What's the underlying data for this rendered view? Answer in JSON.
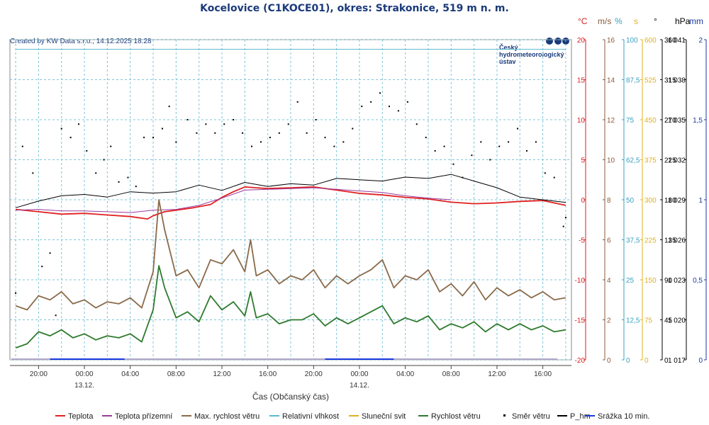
{
  "chart_data": {
    "type": "line",
    "title": "Kocelovice (C1KOCE01), okres: Strakonice, 519 m n. m.",
    "credit": "Created by KW Data s.r.o., 14.12.2025 18:28",
    "logo_text": [
      "Český",
      "hydrometeorologický",
      "ústav"
    ],
    "xlabel": "Čas (Občanský čas)",
    "x_ticks": [
      {
        "h": 20,
        "label": "20:00",
        "sub": ""
      },
      {
        "h": 24,
        "label": "00:00",
        "sub": "13.12."
      },
      {
        "h": 28,
        "label": "04:00",
        "sub": ""
      },
      {
        "h": 32,
        "label": "08:00",
        "sub": ""
      },
      {
        "h": 36,
        "label": "12:00",
        "sub": ""
      },
      {
        "h": 40,
        "label": "16:00",
        "sub": ""
      },
      {
        "h": 44,
        "label": "20:00",
        "sub": ""
      },
      {
        "h": 48,
        "label": "00:00",
        "sub": "14.12."
      },
      {
        "h": 52,
        "label": "04:00",
        "sub": ""
      },
      {
        "h": 56,
        "label": "08:00",
        "sub": ""
      },
      {
        "h": 60,
        "label": "12:00",
        "sub": ""
      },
      {
        "h": 64,
        "label": "16:00",
        "sub": ""
      }
    ],
    "xlim": [
      17.5,
      66.5
    ],
    "axes": [
      {
        "unit": "°C",
        "color": "#d81e1e",
        "ticks": [
          "20",
          "15",
          "10",
          "5",
          "0",
          "-5",
          "-10",
          "-15",
          "-20"
        ]
      },
      {
        "unit": "m/s",
        "color": "#8a5a3a",
        "ticks": [
          "16",
          "14",
          "12",
          "10",
          "8",
          "6",
          "4",
          "2",
          "0"
        ]
      },
      {
        "unit": "%",
        "color": "#39a0c0",
        "ticks": [
          "100",
          "87,5",
          "75",
          "62,5",
          "50",
          "37,5",
          "25",
          "12,5",
          "0"
        ]
      },
      {
        "unit": "s",
        "color": "#e0b020",
        "ticks": [
          "600",
          "525",
          "450",
          "375",
          "300",
          "225",
          "150",
          "75",
          "0"
        ]
      },
      {
        "unit": "°",
        "color": "#000000",
        "ticks": [
          "360",
          "315",
          "270",
          "225",
          "180",
          "135",
          "90",
          "45",
          "0"
        ]
      },
      {
        "unit": "hPa",
        "color": "#000000",
        "ticks": [
          "1 041",
          "1 038",
          "1 035",
          "1 032",
          "1 029",
          "1 026",
          "1 023",
          "1 020",
          "1 017"
        ]
      },
      {
        "unit": "mm",
        "color": "#1a3aa0",
        "ticks": [
          "2",
          "1,5",
          "1",
          "0,5",
          "0"
        ]
      }
    ],
    "series": [
      {
        "name": "Teplota",
        "unit": "°C",
        "color": "#e02020",
        "x": [
          18,
          20,
          22,
          24,
          26,
          28,
          29.5,
          30,
          31,
          32,
          33.5,
          35,
          36,
          37,
          38,
          39,
          40,
          42,
          44,
          46,
          48,
          50,
          52,
          54,
          56,
          58,
          60,
          62,
          64,
          66
        ],
        "y": [
          -1.2,
          -1.5,
          -1.8,
          -1.7,
          -1.9,
          -2.1,
          -2.4,
          -2.0,
          -1.5,
          -1.3,
          -1.0,
          -0.6,
          0.3,
          1.0,
          1.6,
          1.5,
          1.4,
          1.5,
          1.6,
          1.2,
          0.8,
          0.6,
          0.3,
          0.1,
          -0.3,
          -0.5,
          -0.4,
          -0.2,
          -0.1,
          -0.7
        ]
      },
      {
        "name": "Teplota přízemní",
        "unit": "°C",
        "color": "#9a3a9a",
        "x": [
          18,
          20,
          22,
          24,
          26,
          28,
          30,
          32,
          34,
          36,
          38,
          40,
          42,
          44,
          46,
          48,
          50,
          52,
          54,
          56
        ],
        "y": [
          -1.3,
          -1.2,
          -1.4,
          -1.4,
          -1.5,
          -1.6,
          -1.3,
          -1.2,
          -0.7,
          0.2,
          1.2,
          1.3,
          1.4,
          1.5,
          1.3,
          1.1,
          0.9,
          0.5,
          0.2,
          0.0
        ]
      },
      {
        "name": "Max. rychlost větru",
        "unit": "m/s",
        "color": "#8a6a4a",
        "x": [
          18,
          19,
          20,
          21,
          22,
          23,
          24,
          25,
          26,
          27,
          28,
          29,
          30,
          30.5,
          31,
          32,
          33,
          34,
          35,
          36,
          37,
          38,
          38.5,
          39,
          40,
          41,
          42,
          43,
          44,
          45,
          46,
          47,
          48,
          49,
          50,
          51,
          52,
          53,
          54,
          55,
          56,
          57,
          58,
          59,
          60,
          61,
          62,
          63,
          64,
          65,
          66
        ],
        "y": [
          2.7,
          2.5,
          3.2,
          3.0,
          3.4,
          2.8,
          3.0,
          2.6,
          2.9,
          2.8,
          3.1,
          2.6,
          4.4,
          8.0,
          6.5,
          4.2,
          4.5,
          3.6,
          5.0,
          4.8,
          5.5,
          4.4,
          6.0,
          4.2,
          4.5,
          3.8,
          4.2,
          4.0,
          4.5,
          3.6,
          4.2,
          3.8,
          4.2,
          4.5,
          5.0,
          3.6,
          4.2,
          4.0,
          4.5,
          3.4,
          3.8,
          3.2,
          3.9,
          3.0,
          3.6,
          3.2,
          3.5,
          3.1,
          3.4,
          3.0,
          3.1
        ]
      },
      {
        "name": "Relativní vlhkost",
        "unit": "%",
        "color": "#5ab8d0",
        "x": [
          18,
          22,
          26,
          30,
          34,
          38,
          42,
          46,
          50,
          54,
          58,
          62,
          66
        ],
        "y": [
          97,
          97,
          97,
          97,
          97,
          97,
          97,
          97,
          97,
          97,
          97,
          97,
          97
        ]
      },
      {
        "name": "Sluneční svit",
        "unit": "s",
        "color": "#e0b020",
        "x": [],
        "y": []
      },
      {
        "name": "Rychlost větru",
        "unit": "m/s",
        "color": "#2e7a2e",
        "x": [
          18,
          19,
          20,
          21,
          22,
          23,
          24,
          25,
          26,
          27,
          28,
          29,
          30,
          30.5,
          31,
          32,
          33,
          34,
          35,
          36,
          37,
          38,
          38.5,
          39,
          40,
          41,
          42,
          43,
          44,
          45,
          46,
          47,
          48,
          49,
          50,
          51,
          52,
          53,
          54,
          55,
          56,
          57,
          58,
          59,
          60,
          61,
          62,
          63,
          64,
          65,
          66
        ],
        "y": [
          0.6,
          0.8,
          1.4,
          1.2,
          1.5,
          1.1,
          1.3,
          1.0,
          1.2,
          1.1,
          1.3,
          0.9,
          2.5,
          4.7,
          3.6,
          2.1,
          2.4,
          1.9,
          3.2,
          2.5,
          2.9,
          2.2,
          3.4,
          2.1,
          2.3,
          1.8,
          2.0,
          2.0,
          2.3,
          1.7,
          2.1,
          1.8,
          2.1,
          2.4,
          2.7,
          1.8,
          2.1,
          1.9,
          2.2,
          1.5,
          1.8,
          1.6,
          1.9,
          1.4,
          1.8,
          1.5,
          1.8,
          1.5,
          1.7,
          1.4,
          1.5
        ]
      },
      {
        "name": "Směr větru",
        "unit": "°",
        "color": "#000000",
        "style": "dots",
        "x": [
          18,
          18.6,
          19.5,
          20.3,
          21,
          21.5,
          22,
          22.8,
          23.5,
          24.2,
          25,
          25.7,
          26.3,
          27,
          27.8,
          28.5,
          29.2,
          30,
          30.8,
          31.4,
          32,
          33,
          33.8,
          34.6,
          35.4,
          36.2,
          37,
          37.8,
          38.6,
          39.4,
          40.2,
          41,
          41.8,
          42.6,
          43.4,
          44.2,
          45,
          45.8,
          46.6,
          47.4,
          48.2,
          49,
          49.8,
          50.6,
          51.4,
          52.2,
          53,
          53.8,
          54.6,
          55.4,
          56.2,
          57,
          57.8,
          58.6,
          59.4,
          60.2,
          61,
          61.8,
          62.6,
          63.4,
          64.2,
          65,
          65.8,
          66
        ],
        "y": [
          75,
          240,
          210,
          105,
          120,
          50,
          260,
          250,
          265,
          235,
          210,
          225,
          240,
          200,
          205,
          195,
          250,
          250,
          260,
          285,
          245,
          270,
          255,
          265,
          255,
          265,
          270,
          255,
          240,
          245,
          250,
          255,
          265,
          290,
          255,
          270,
          250,
          240,
          245,
          260,
          285,
          290,
          300,
          285,
          280,
          290,
          265,
          250,
          235,
          240,
          220,
          205,
          230,
          245,
          225,
          240,
          245,
          260,
          235,
          245,
          210,
          205,
          150,
          160
        ]
      },
      {
        "name": "P_hm",
        "unit": "hPa",
        "color": "#000000",
        "x": [
          18,
          20,
          22,
          24,
          26,
          28,
          30,
          32,
          34,
          36,
          38,
          40,
          42,
          44,
          46,
          48,
          50,
          52,
          54,
          56,
          58,
          60,
          62,
          64,
          66
        ],
        "y": [
          1028.4,
          1028.9,
          1029.3,
          1029.4,
          1029.2,
          1029.6,
          1029.5,
          1029.6,
          1030.1,
          1029.7,
          1030.3,
          1030.0,
          1030.2,
          1030.1,
          1030.6,
          1030.5,
          1030.4,
          1030.7,
          1030.6,
          1030.9,
          1030.4,
          1029.9,
          1029.2,
          1029.0,
          1028.8
        ]
      },
      {
        "name": "Srážka 10 min.",
        "unit": "mm",
        "color": "#1a3ae0",
        "x": [
          21,
          27.5,
          45,
          51
        ],
        "y": [
          0.005,
          0.005,
          0.005,
          0.005
        ]
      }
    ]
  }
}
